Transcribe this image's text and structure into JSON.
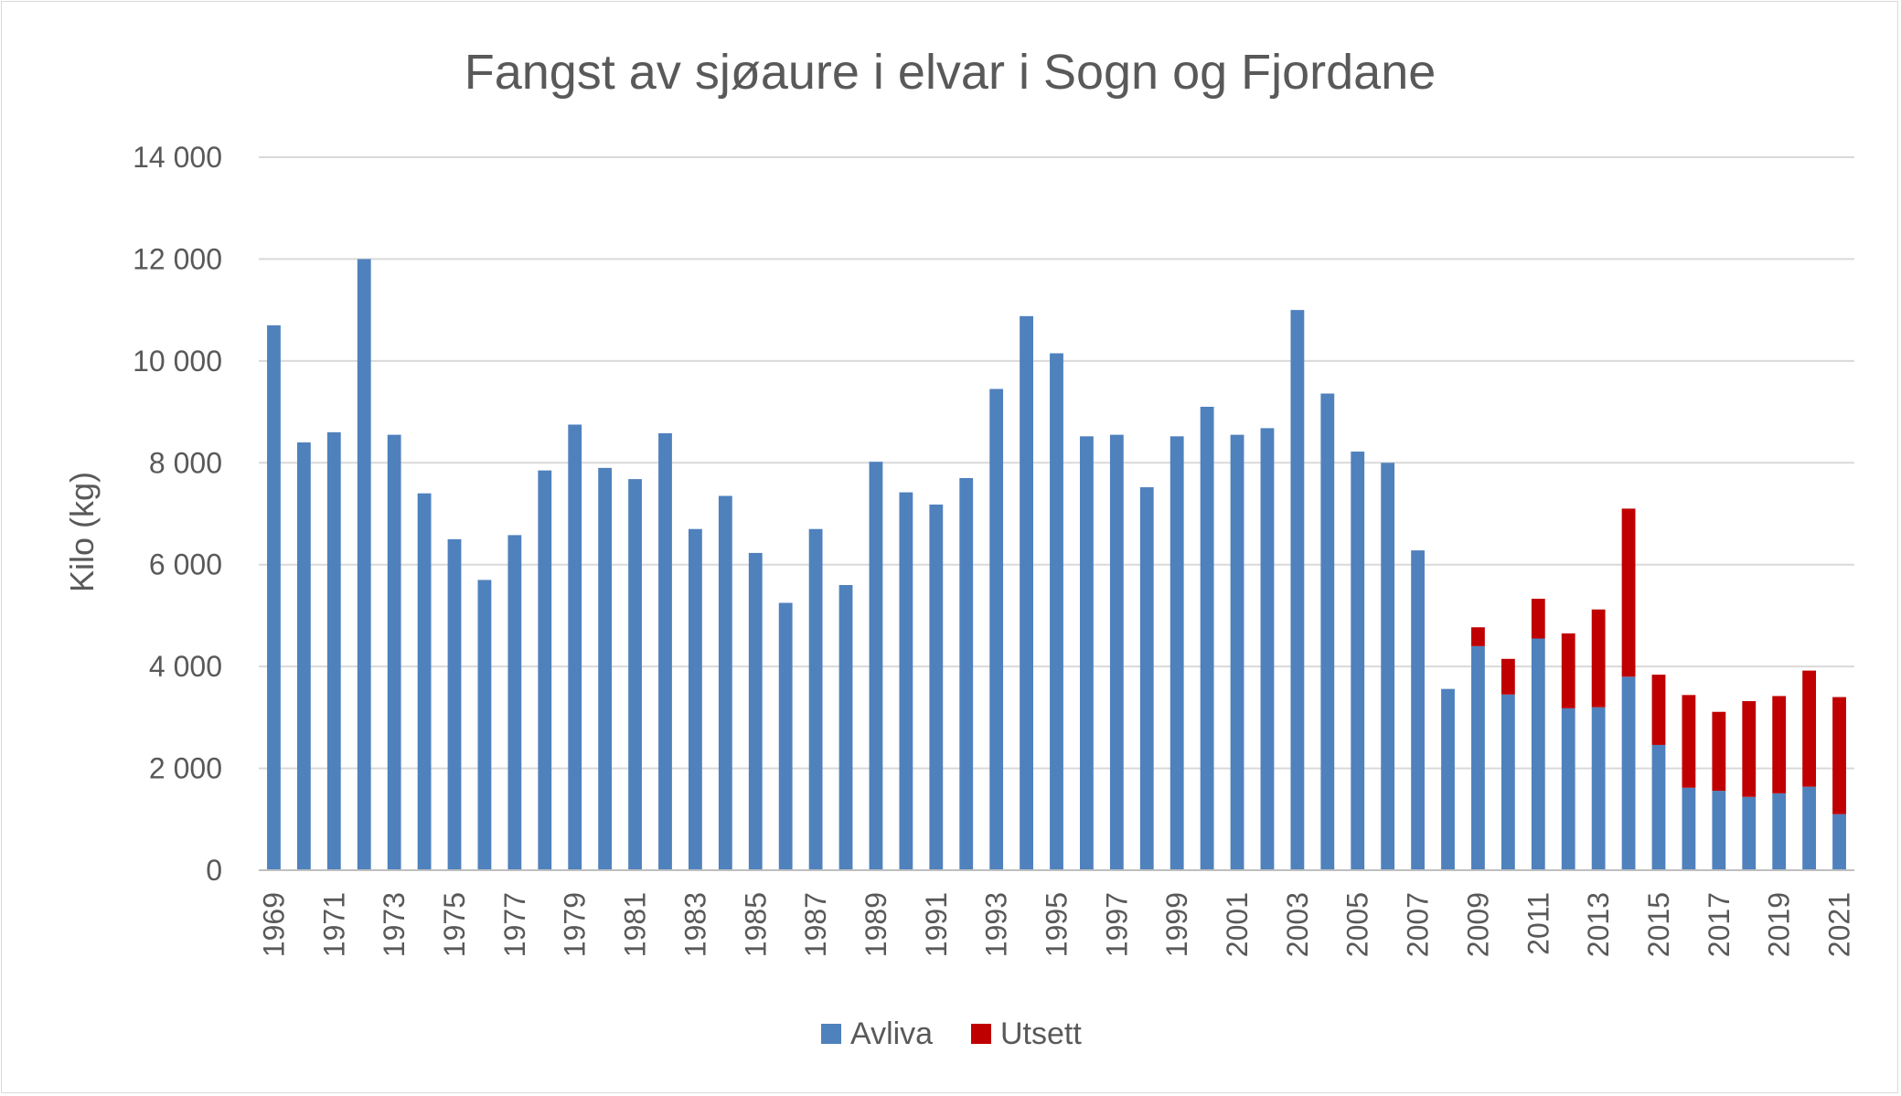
{
  "chart_data": {
    "type": "bar",
    "stacked": true,
    "title": "Fangst av sjøaure i elvar i Sogn og Fjordane",
    "xlabel": "",
    "ylabel": "Kilo (kg)",
    "ylim": [
      0,
      14000
    ],
    "yticks": [
      0,
      2000,
      4000,
      6000,
      8000,
      10000,
      12000,
      14000
    ],
    "ytick_labels": [
      "0",
      "2 000",
      "4 000",
      "6 000",
      "8 000",
      "10 000",
      "12 000",
      "14 000"
    ],
    "grid": true,
    "legend_position": "bottom",
    "categories": [
      "1969",
      "1970",
      "1971",
      "1972",
      "1973",
      "1974",
      "1975",
      "1976",
      "1977",
      "1978",
      "1979",
      "1980",
      "1981",
      "1982",
      "1983",
      "1984",
      "1985",
      "1986",
      "1987",
      "1988",
      "1989",
      "1990",
      "1991",
      "1992",
      "1993",
      "1994",
      "1995",
      "1996",
      "1997",
      "1998",
      "1999",
      "2000",
      "2001",
      "2002",
      "2003",
      "2004",
      "2005",
      "2006",
      "2007",
      "2008",
      "2009",
      "2010",
      "2011",
      "2012",
      "2013",
      "2014",
      "2015",
      "2016",
      "2017",
      "2018",
      "2019",
      "2020",
      "2021"
    ],
    "xtick_labels": [
      "1969",
      "1971",
      "1973",
      "1975",
      "1977",
      "1979",
      "1981",
      "1983",
      "1985",
      "1987",
      "1989",
      "1991",
      "1993",
      "1995",
      "1997",
      "1999",
      "2001",
      "2003",
      "2005",
      "2007",
      "2009",
      "2011",
      "2013",
      "2015",
      "2017",
      "2019",
      "2021"
    ],
    "series": [
      {
        "name": "Avliva",
        "color": "#4f81bd",
        "values": [
          10700,
          8400,
          8600,
          12000,
          8550,
          7400,
          6500,
          5700,
          6580,
          7850,
          8750,
          7900,
          7680,
          8580,
          6700,
          7350,
          6230,
          5250,
          6700,
          5600,
          8020,
          7420,
          7180,
          7700,
          9450,
          10880,
          10150,
          8520,
          8550,
          7520,
          8520,
          9100,
          8550,
          8680,
          11000,
          9360,
          8220,
          8000,
          6280,
          3560,
          4400,
          3450,
          4550,
          3180,
          3200,
          3800,
          2460,
          1620,
          1560,
          1440,
          1510,
          1640,
          1100
        ]
      },
      {
        "name": "Utsett",
        "color": "#c00000",
        "values": [
          0,
          0,
          0,
          0,
          0,
          0,
          0,
          0,
          0,
          0,
          0,
          0,
          0,
          0,
          0,
          0,
          0,
          0,
          0,
          0,
          0,
          0,
          0,
          0,
          0,
          0,
          0,
          0,
          0,
          0,
          0,
          0,
          0,
          0,
          0,
          0,
          0,
          0,
          0,
          0,
          370,
          700,
          780,
          1470,
          1920,
          3300,
          1380,
          1820,
          1550,
          1880,
          1910,
          2280,
          2300
        ]
      }
    ]
  }
}
